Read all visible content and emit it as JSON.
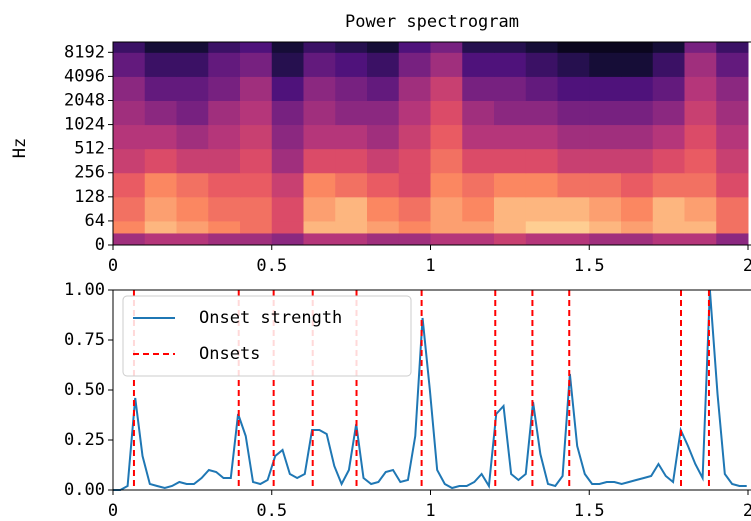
{
  "chart_data": [
    {
      "type": "heatmap",
      "title": "Power spectrogram",
      "y_label": "Hz",
      "xlim": [
        0,
        2
      ],
      "xticks": [
        0,
        0.5,
        1,
        1.5,
        2
      ],
      "ylim": [
        0,
        11025
      ],
      "yscale": "symlog",
      "linthresh": 64,
      "base": 2,
      "yticks": [
        0,
        64,
        128,
        256,
        512,
        1024,
        2048,
        4096,
        8192
      ],
      "time_bins": [
        0,
        0.1,
        0.2,
        0.3,
        0.4,
        0.5,
        0.6,
        0.7,
        0.8,
        0.9,
        1.0,
        1.1,
        1.2,
        1.3,
        1.4,
        1.5,
        1.6,
        1.7,
        1.8,
        1.9,
        2.0
      ],
      "freq_bins": [
        0,
        32,
        64,
        128,
        256,
        512,
        1024,
        2048,
        4096,
        8192,
        11025
      ],
      "colormap": [
        "#000004",
        "#1c1044",
        "#4f127b",
        "#812581",
        "#b5367a",
        "#e55064",
        "#fb8761",
        "#fec287",
        "#fcfdbf"
      ],
      "values": [
        [
          0.45,
          0.5,
          0.5,
          0.45,
          0.45,
          0.4,
          0.5,
          0.5,
          0.45,
          0.45,
          0.5,
          0.5,
          0.55,
          0.5,
          0.5,
          0.45,
          0.45,
          0.5,
          0.5,
          0.4
        ],
        [
          0.75,
          0.85,
          0.8,
          0.75,
          0.7,
          0.6,
          0.85,
          0.85,
          0.8,
          0.75,
          0.8,
          0.8,
          0.85,
          0.9,
          0.9,
          0.85,
          0.8,
          0.85,
          0.85,
          0.7
        ],
        [
          0.7,
          0.8,
          0.75,
          0.7,
          0.7,
          0.6,
          0.8,
          0.85,
          0.75,
          0.7,
          0.8,
          0.75,
          0.85,
          0.85,
          0.85,
          0.8,
          0.75,
          0.85,
          0.8,
          0.7
        ],
        [
          0.65,
          0.75,
          0.7,
          0.65,
          0.65,
          0.55,
          0.75,
          0.7,
          0.65,
          0.6,
          0.75,
          0.7,
          0.75,
          0.75,
          0.7,
          0.7,
          0.65,
          0.7,
          0.7,
          0.6
        ],
        [
          0.55,
          0.6,
          0.55,
          0.55,
          0.6,
          0.45,
          0.6,
          0.6,
          0.55,
          0.6,
          0.7,
          0.6,
          0.6,
          0.6,
          0.55,
          0.55,
          0.55,
          0.6,
          0.65,
          0.55
        ],
        [
          0.5,
          0.5,
          0.45,
          0.5,
          0.55,
          0.4,
          0.5,
          0.5,
          0.45,
          0.55,
          0.65,
          0.5,
          0.5,
          0.5,
          0.45,
          0.45,
          0.45,
          0.5,
          0.6,
          0.5
        ],
        [
          0.45,
          0.4,
          0.35,
          0.45,
          0.5,
          0.35,
          0.45,
          0.4,
          0.4,
          0.5,
          0.6,
          0.45,
          0.4,
          0.4,
          0.35,
          0.35,
          0.35,
          0.4,
          0.55,
          0.45
        ],
        [
          0.4,
          0.3,
          0.3,
          0.35,
          0.45,
          0.25,
          0.4,
          0.35,
          0.3,
          0.45,
          0.55,
          0.35,
          0.35,
          0.3,
          0.25,
          0.25,
          0.25,
          0.3,
          0.5,
          0.4
        ],
        [
          0.3,
          0.2,
          0.2,
          0.3,
          0.35,
          0.15,
          0.3,
          0.25,
          0.2,
          0.35,
          0.45,
          0.25,
          0.25,
          0.2,
          0.15,
          0.1,
          0.1,
          0.2,
          0.45,
          0.3
        ],
        [
          0.2,
          0.1,
          0.1,
          0.2,
          0.25,
          0.1,
          0.2,
          0.15,
          0.1,
          0.25,
          0.35,
          0.15,
          0.15,
          0.1,
          0.05,
          0.05,
          0.05,
          0.1,
          0.35,
          0.2
        ]
      ]
    },
    {
      "type": "line",
      "legend": "upper left",
      "xlim": [
        0,
        2
      ],
      "xticks": [
        0,
        0.5,
        1,
        1.5,
        2
      ],
      "ylim": [
        0,
        1
      ],
      "yticks": [
        {
          "value": 0,
          "label": "0.00"
        },
        {
          "value": 0.25,
          "label": "0.25"
        },
        {
          "value": 0.5,
          "label": "0.50"
        },
        {
          "value": 0.75,
          "label": "0.75"
        },
        {
          "value": 1,
          "label": "1.00"
        }
      ],
      "x": [
        0,
        0.023,
        0.046,
        0.07,
        0.093,
        0.116,
        0.139,
        0.163,
        0.186,
        0.209,
        0.232,
        0.255,
        0.279,
        0.302,
        0.325,
        0.348,
        0.371,
        0.394,
        0.418,
        0.441,
        0.464,
        0.487,
        0.511,
        0.534,
        0.557,
        0.58,
        0.604,
        0.627,
        0.65,
        0.673,
        0.697,
        0.72,
        0.743,
        0.766,
        0.789,
        0.813,
        0.836,
        0.859,
        0.882,
        0.905,
        0.929,
        0.952,
        0.975,
        0.998,
        1.021,
        1.045,
        1.068,
        1.091,
        1.114,
        1.138,
        1.161,
        1.184,
        1.207,
        1.23,
        1.254,
        1.277,
        1.3,
        1.323,
        1.346,
        1.37,
        1.393,
        1.416,
        1.439,
        1.462,
        1.486,
        1.509,
        1.532,
        1.555,
        1.579,
        1.602,
        1.625,
        1.648,
        1.672,
        1.695,
        1.718,
        1.741,
        1.764,
        1.788,
        1.811,
        1.834,
        1.857,
        1.88,
        1.904,
        1.927,
        1.95,
        1.973,
        1.996
      ],
      "series": [
        {
          "name": "Onset strength",
          "color": "#1f77b4",
          "values": [
            0,
            0,
            0.02,
            0.46,
            0.17,
            0.03,
            0.02,
            0.01,
            0.02,
            0.04,
            0.03,
            0.03,
            0.06,
            0.1,
            0.09,
            0.06,
            0.06,
            0.38,
            0.27,
            0.04,
            0.03,
            0.05,
            0.17,
            0.2,
            0.08,
            0.06,
            0.08,
            0.3,
            0.3,
            0.28,
            0.12,
            0.03,
            0.1,
            0.33,
            0.06,
            0.03,
            0.04,
            0.09,
            0.1,
            0.04,
            0.05,
            0.27,
            0.86,
            0.5,
            0.1,
            0.03,
            0.01,
            0.02,
            0.02,
            0.04,
            0.08,
            0.02,
            0.38,
            0.42,
            0.08,
            0.05,
            0.08,
            0.44,
            0.18,
            0.03,
            0.02,
            0.07,
            0.58,
            0.22,
            0.08,
            0.03,
            0.03,
            0.04,
            0.04,
            0.03,
            0.04,
            0.05,
            0.06,
            0.07,
            0.13,
            0.07,
            0.04,
            0.3,
            0.22,
            0.13,
            0.06,
            1.0,
            0.48,
            0.08,
            0.03,
            0.02,
            0.02
          ]
        }
      ],
      "onsets": {
        "name": "Onsets",
        "color": "#ff0000",
        "x": [
          0.066,
          0.396,
          0.506,
          0.629,
          0.767,
          0.972,
          1.204,
          1.321,
          1.437,
          1.789,
          1.877
        ]
      }
    }
  ]
}
